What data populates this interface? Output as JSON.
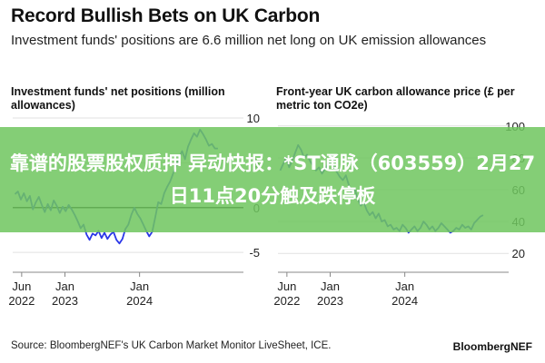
{
  "header": {
    "title": "Record Bullish Bets on UK Carbon",
    "subtitle": "Investment funds' positions are 6.6 million net long on UK emission allowances"
  },
  "overlay": {
    "text": "靠谱的股票股权质押 异动快报：*ST通脉（603559）2月27日11点20分触及跌停板"
  },
  "footer": {
    "source": "Source: BloombergNEF's UK Carbon Market Monitor LiveSheet, ICE.",
    "brand": "BloombergNEF"
  },
  "colors": {
    "line": "#2b37e8",
    "zero_line": "#111111",
    "grid": "#e1e1e1",
    "banner": "#70c660"
  },
  "chart_data": [
    {
      "type": "line",
      "title": "Investment funds' net positions (million allowances)",
      "x_ticks": [
        [
          "Jun",
          "2022"
        ],
        [
          "Jan",
          "2023"
        ],
        [
          "Jan",
          "2024"
        ]
      ],
      "y_ticks": [
        "10",
        "5",
        "0",
        "-5"
      ],
      "ylim": [
        -6,
        10
      ],
      "xlim": [
        2022.3,
        2025.1
      ],
      "x_tick_values": [
        2022.42,
        2023.0,
        2024.0
      ],
      "y_tick_values": [
        10,
        5,
        0,
        -5
      ],
      "grid": true,
      "series": [
        {
          "x": [
            2022.33,
            2022.37,
            2022.41,
            2022.45,
            2022.49,
            2022.53,
            2022.57,
            2022.61,
            2022.65,
            2022.69,
            2022.73,
            2022.77,
            2022.81,
            2022.85,
            2022.89,
            2022.93,
            2022.97,
            2023.01,
            2023.05,
            2023.09,
            2023.13,
            2023.17,
            2023.21,
            2023.25,
            2023.29,
            2023.33,
            2023.37,
            2023.41,
            2023.45,
            2023.49,
            2023.53,
            2023.57,
            2023.61,
            2023.65,
            2023.69,
            2023.73,
            2023.77,
            2023.81,
            2023.85,
            2023.89,
            2023.93,
            2023.97,
            2024.01,
            2024.05,
            2024.09,
            2024.13,
            2024.17,
            2024.21,
            2024.25,
            2024.29,
            2024.33,
            2024.37,
            2024.41,
            2024.45,
            2024.49,
            2024.53,
            2024.57,
            2024.61,
            2024.65,
            2024.69,
            2024.73,
            2024.77,
            2024.81,
            2024.85,
            2024.89,
            2024.93,
            2024.97,
            2025.01,
            2025.05
          ],
          "y": [
            1.5,
            1.8,
            0.9,
            1.6,
            0.7,
            1.3,
            -0.2,
            0.6,
            1.2,
            0.3,
            -0.5,
            0.4,
            -0.3,
            0.8,
            0.2,
            -0.6,
            0.1,
            -0.4,
            0.3,
            -0.2,
            -0.8,
            -1.5,
            -2.3,
            -1.9,
            -3.0,
            -3.6,
            -2.9,
            -3.1,
            -2.6,
            -3.4,
            -2.8,
            -3.5,
            -3.0,
            -2.7,
            -3.6,
            -4.0,
            -3.5,
            -2.4,
            -1.9,
            -0.8,
            0.0,
            -0.7,
            -1.2,
            -1.9,
            -2.6,
            -3.2,
            -2.7,
            -1.1,
            0.6,
            0.4,
            1.6,
            2.3,
            2.9,
            3.8,
            4.7,
            5.6,
            6.3,
            5.4,
            6.8,
            7.6,
            8.3,
            7.9,
            8.7,
            8.2,
            7.6,
            6.9,
            7.1,
            6.6,
            6.6
          ]
        }
      ]
    },
    {
      "type": "line",
      "title": "Front-year UK carbon allowance price (£ per metric ton CO2e)",
      "x_ticks": [
        [
          "Jun",
          "2022"
        ],
        [
          "Jan",
          "2023"
        ],
        [
          "Jan",
          "2024"
        ]
      ],
      "y_ticks": [
        "100",
        "80",
        "60",
        "40",
        "20"
      ],
      "ylim": [
        15,
        105
      ],
      "xlim": [
        2022.3,
        2025.1
      ],
      "x_tick_values": [
        2022.42,
        2023.0,
        2024.0
      ],
      "y_tick_values": [
        100,
        80,
        60,
        40,
        20
      ],
      "grid": true,
      "series": [
        {
          "x": [
            2022.33,
            2022.37,
            2022.41,
            2022.45,
            2022.49,
            2022.53,
            2022.57,
            2022.61,
            2022.65,
            2022.69,
            2022.73,
            2022.77,
            2022.81,
            2022.85,
            2022.89,
            2022.93,
            2022.97,
            2023.01,
            2023.05,
            2023.09,
            2023.13,
            2023.17,
            2023.21,
            2023.25,
            2023.29,
            2023.33,
            2023.37,
            2023.41,
            2023.45,
            2023.49,
            2023.53,
            2023.57,
            2023.61,
            2023.65,
            2023.69,
            2023.73,
            2023.77,
            2023.81,
            2023.85,
            2023.89,
            2023.93,
            2023.97,
            2024.01,
            2024.05,
            2024.09,
            2024.13,
            2024.17,
            2024.21,
            2024.25,
            2024.29,
            2024.33,
            2024.37,
            2024.41,
            2024.45,
            2024.49,
            2024.53,
            2024.57,
            2024.61,
            2024.65,
            2024.69,
            2024.73,
            2024.77,
            2024.81,
            2024.85,
            2024.89,
            2024.93,
            2024.97,
            2025.01,
            2025.05
          ],
          "y": [
            72,
            76,
            80,
            74,
            78,
            83,
            88,
            85,
            80,
            82,
            78,
            75,
            72,
            74,
            70,
            73,
            76,
            78,
            74,
            71,
            68,
            66,
            69,
            63,
            58,
            60,
            54,
            50,
            52,
            47,
            44,
            46,
            42,
            45,
            40,
            41,
            37,
            38,
            35,
            36,
            34,
            38,
            36,
            33,
            35,
            37,
            34,
            36,
            40,
            38,
            35,
            37,
            34,
            36,
            39,
            37,
            35,
            33,
            34,
            36,
            35,
            38,
            36,
            37,
            35,
            39,
            41,
            43,
            44
          ]
        }
      ]
    }
  ]
}
